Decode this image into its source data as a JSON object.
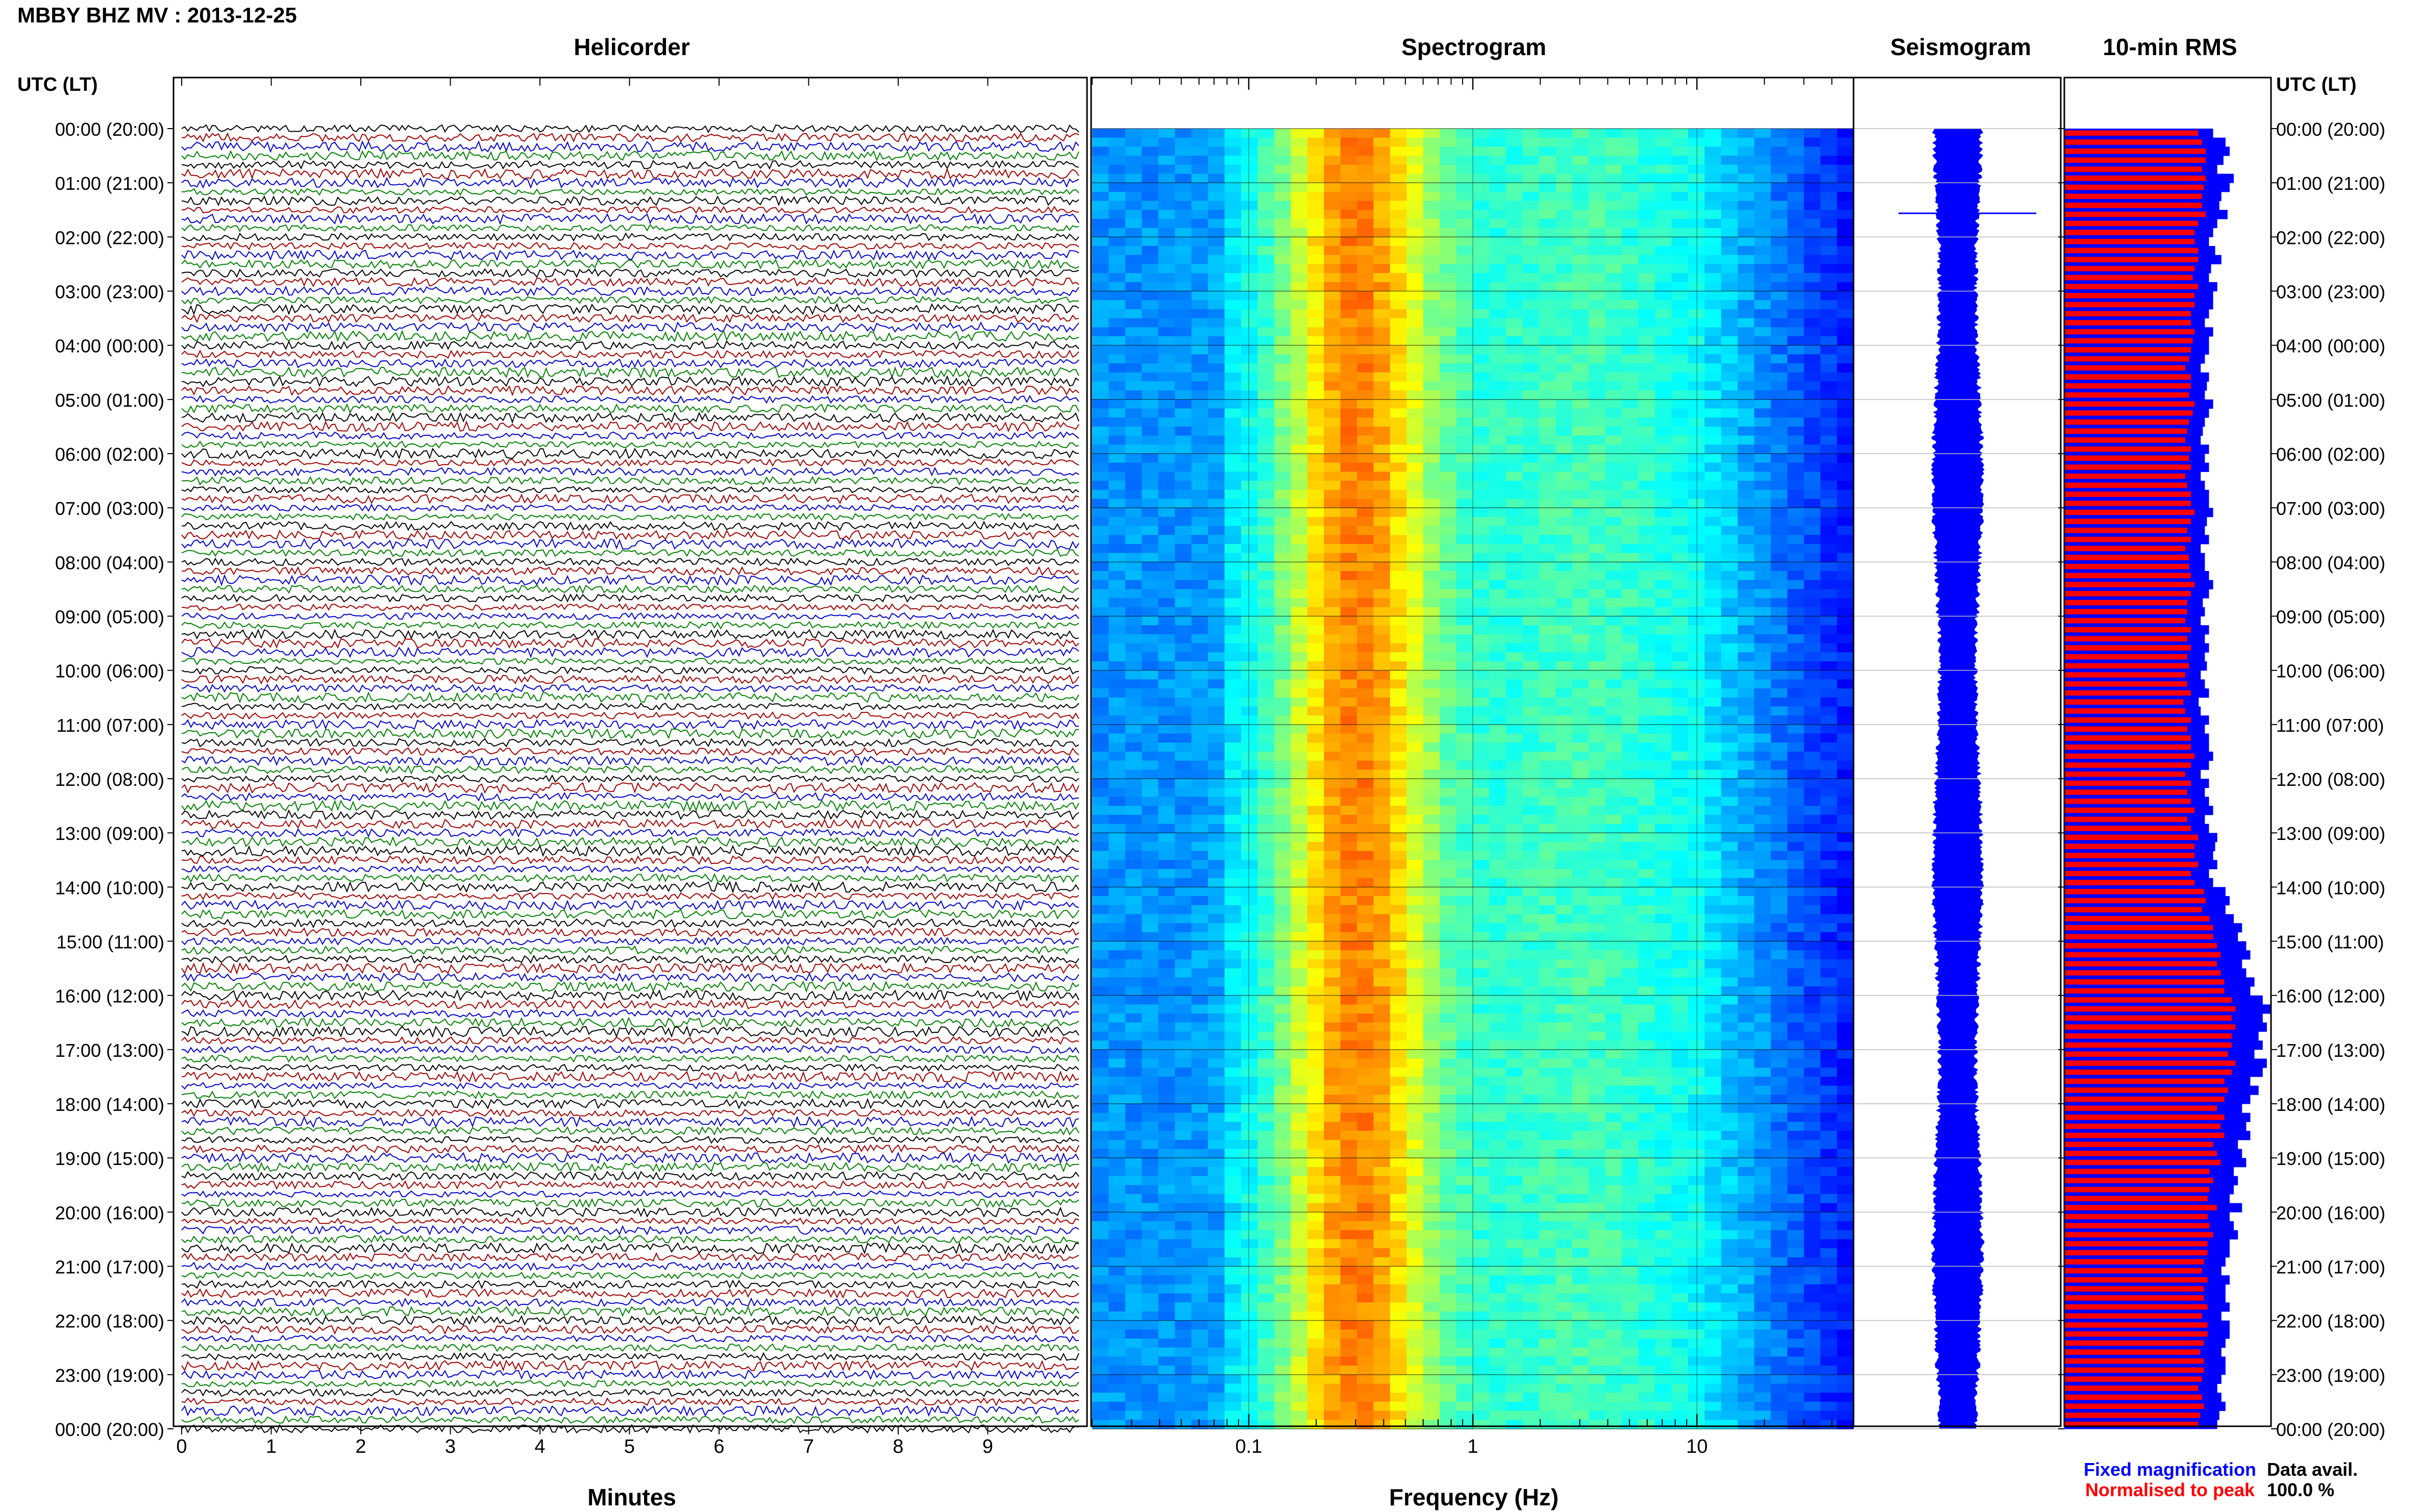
{
  "title": "MBBY BHZ MV : 2013-12-25",
  "panels": {
    "helicorder": "Helicorder",
    "spectrogram": "Spectrogram",
    "seismogram": "Seismogram",
    "rms": "10-min RMS"
  },
  "time_axis_label": "UTC (LT)",
  "time_labels": [
    "00:00 (20:00)",
    "01:00 (21:00)",
    "02:00 (22:00)",
    "03:00 (23:00)",
    "04:00 (00:00)",
    "05:00 (01:00)",
    "06:00 (02:00)",
    "07:00 (03:00)",
    "08:00 (04:00)",
    "09:00 (05:00)",
    "10:00 (06:00)",
    "11:00 (07:00)",
    "12:00 (08:00)",
    "13:00 (09:00)",
    "14:00 (10:00)",
    "15:00 (11:00)",
    "16:00 (12:00)",
    "17:00 (13:00)",
    "18:00 (14:00)",
    "19:00 (15:00)",
    "20:00 (16:00)",
    "21:00 (17:00)",
    "22:00 (18:00)",
    "23:00 (19:00)",
    "00:00 (20:00)"
  ],
  "minutes_ticks": [
    "0",
    "1",
    "2",
    "3",
    "4",
    "5",
    "6",
    "7",
    "8",
    "9"
  ],
  "minutes_label": "Minutes",
  "frequency_ticks": [
    "0.1",
    "1",
    "10"
  ],
  "frequency_label": "Frequency (Hz)",
  "legend": {
    "fixed": "Fixed magnification",
    "normalised": "Normalised to peak",
    "fixed_color": "#0000ff",
    "normalised_color": "#ff0000"
  },
  "data_avail": {
    "label": "Data avail.",
    "value": "100.0 %"
  },
  "colors": {
    "trace_cycle": [
      "#000000",
      "#a00000",
      "#0000cc",
      "#008000"
    ],
    "rms_fixed": "#0000ff",
    "rms_norm": "#ff0000"
  },
  "chart_data": {
    "type": "heatmap",
    "title": "MBBY BHZ MV : 2013-12-25",
    "helicorder": {
      "xlabel": "Minutes",
      "xlim": [
        0,
        10
      ],
      "rows_per_hour": 6,
      "hours": 24
    },
    "spectrogram": {
      "xlabel": "Frequency (Hz)",
      "xscale": "log",
      "xlim": [
        0.02,
        50
      ],
      "peak_frequency_hz": 0.3
    },
    "rms_10min": {
      "series": [
        {
          "name": "Fixed magnification"
        },
        {
          "name": "Normalised to peak"
        }
      ],
      "fixed_relative": [
        0.72,
        0.78,
        0.8,
        0.77,
        0.74,
        0.82,
        0.8,
        0.76,
        0.75,
        0.79,
        0.74,
        0.72,
        0.7,
        0.73,
        0.76,
        0.71,
        0.7,
        0.74,
        0.72,
        0.72,
        0.7,
        0.68,
        0.72,
        0.7,
        0.7,
        0.68,
        0.66,
        0.7,
        0.69,
        0.68,
        0.72,
        0.7,
        0.68,
        0.67,
        0.66,
        0.7,
        0.68,
        0.7,
        0.66,
        0.68,
        0.7,
        0.7,
        0.72,
        0.69,
        0.68,
        0.7,
        0.66,
        0.68,
        0.68,
        0.7,
        0.72,
        0.7,
        0.67,
        0.68,
        0.66,
        0.7,
        0.68,
        0.7,
        0.68,
        0.69,
        0.66,
        0.68,
        0.7,
        0.65,
        0.66,
        0.7,
        0.68,
        0.7,
        0.7,
        0.72,
        0.7,
        0.66,
        0.7,
        0.68,
        0.7,
        0.72,
        0.68,
        0.7,
        0.74,
        0.73,
        0.72,
        0.74,
        0.7,
        0.72,
        0.78,
        0.8,
        0.78,
        0.82,
        0.86,
        0.84,
        0.88,
        0.9,
        0.86,
        0.88,
        0.92,
        0.9,
        0.96,
        1.0,
        0.96,
        0.98,
        0.94,
        0.96,
        0.92,
        0.98,
        0.96,
        0.9,
        0.94,
        0.9,
        0.86,
        0.9,
        0.88,
        0.9,
        0.84,
        0.86,
        0.88,
        0.82,
        0.84,
        0.82,
        0.8,
        0.86,
        0.8,
        0.82,
        0.84,
        0.8,
        0.8,
        0.78,
        0.76,
        0.8,
        0.78,
        0.78,
        0.8,
        0.76,
        0.8,
        0.8,
        0.78,
        0.76,
        0.78,
        0.78,
        0.76,
        0.74,
        0.76,
        0.78,
        0.75,
        0.74
      ],
      "normalised_relative": [
        0.72,
        0.74,
        0.76,
        0.76,
        0.74,
        0.76,
        0.75,
        0.74,
        0.74,
        0.76,
        0.72,
        0.7,
        0.7,
        0.72,
        0.72,
        0.7,
        0.69,
        0.72,
        0.7,
        0.7,
        0.68,
        0.68,
        0.7,
        0.69,
        0.68,
        0.67,
        0.65,
        0.68,
        0.68,
        0.67,
        0.7,
        0.69,
        0.67,
        0.66,
        0.65,
        0.68,
        0.67,
        0.68,
        0.65,
        0.66,
        0.68,
        0.68,
        0.7,
        0.68,
        0.66,
        0.68,
        0.65,
        0.67,
        0.67,
        0.68,
        0.7,
        0.68,
        0.66,
        0.66,
        0.65,
        0.68,
        0.66,
        0.68,
        0.66,
        0.67,
        0.65,
        0.66,
        0.68,
        0.64,
        0.65,
        0.68,
        0.66,
        0.68,
        0.68,
        0.7,
        0.68,
        0.65,
        0.68,
        0.66,
        0.68,
        0.7,
        0.66,
        0.68,
        0.72,
        0.7,
        0.7,
        0.72,
        0.68,
        0.7,
        0.75,
        0.76,
        0.74,
        0.78,
        0.8,
        0.8,
        0.82,
        0.84,
        0.82,
        0.84,
        0.86,
        0.86,
        0.9,
        0.92,
        0.9,
        0.92,
        0.9,
        0.9,
        0.88,
        0.92,
        0.9,
        0.86,
        0.88,
        0.86,
        0.82,
        0.86,
        0.84,
        0.86,
        0.8,
        0.82,
        0.84,
        0.78,
        0.8,
        0.78,
        0.77,
        0.82,
        0.77,
        0.78,
        0.8,
        0.77,
        0.77,
        0.75,
        0.74,
        0.77,
        0.75,
        0.75,
        0.77,
        0.74,
        0.77,
        0.77,
        0.75,
        0.73,
        0.75,
        0.75,
        0.74,
        0.72,
        0.74,
        0.75,
        0.73,
        0.72
      ]
    }
  }
}
